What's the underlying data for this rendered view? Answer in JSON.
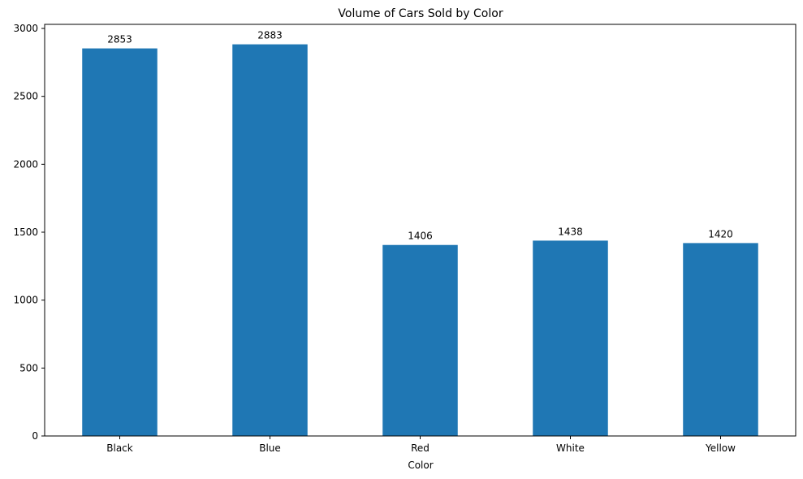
{
  "chart_data": {
    "type": "bar",
    "title": "Volume of Cars Sold by Color",
    "xlabel": "Color",
    "ylabel": "",
    "categories": [
      "Black",
      "Blue",
      "Red",
      "White",
      "Yellow"
    ],
    "values": [
      2853,
      2883,
      1406,
      1438,
      1420
    ],
    "ylim": [
      0,
      3030
    ],
    "yticks": [
      0,
      500,
      1000,
      1500,
      2000,
      2500,
      3000
    ],
    "bar_color": "#1f77b4",
    "grid": false,
    "legend": "none"
  }
}
